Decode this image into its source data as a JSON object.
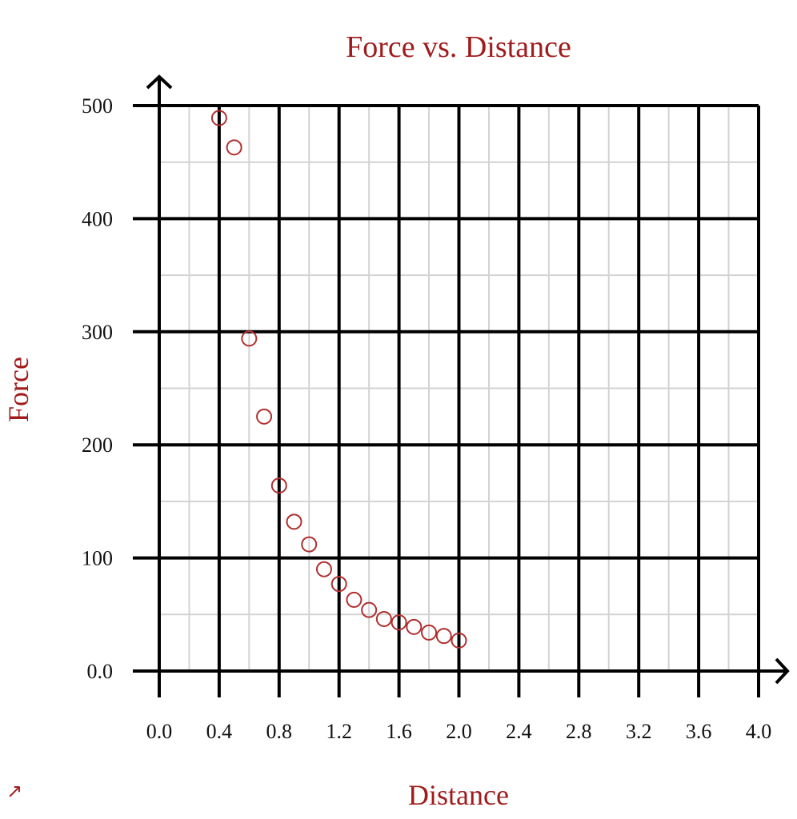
{
  "chart_data": {
    "type": "scatter",
    "title": "Force vs. Distance",
    "xlabel": "Distance",
    "ylabel": "Force",
    "xlim": [
      0,
      4.0
    ],
    "ylim": [
      0,
      500
    ],
    "x_ticks": [
      "0.0",
      "0.4",
      "0.8",
      "1.2",
      "1.6",
      "2.0",
      "2.4",
      "2.8",
      "3.2",
      "3.6",
      "4.0"
    ],
    "y_ticks": [
      "0.0",
      "100",
      "200",
      "300",
      "400",
      "500"
    ],
    "grid": true,
    "marker": "open-circle",
    "series": [
      {
        "x": [
          0.4,
          0.5,
          0.6,
          0.7,
          0.8,
          0.9,
          1.0,
          1.1,
          1.2,
          1.3,
          1.4,
          1.5,
          1.6,
          1.7,
          1.8,
          1.9,
          2.0
        ],
        "y": [
          489,
          463,
          294,
          225,
          164,
          132,
          112,
          90,
          77,
          63,
          54,
          46,
          43,
          39,
          34,
          31,
          27
        ]
      }
    ],
    "colors": {
      "text_accent": "#a01c1c",
      "marker": "#b03030",
      "major_grid": "#000000",
      "minor_grid": "#d3d3d3"
    }
  },
  "corner_icon": "expand-arrow-icon",
  "corner_glyph": "↗"
}
